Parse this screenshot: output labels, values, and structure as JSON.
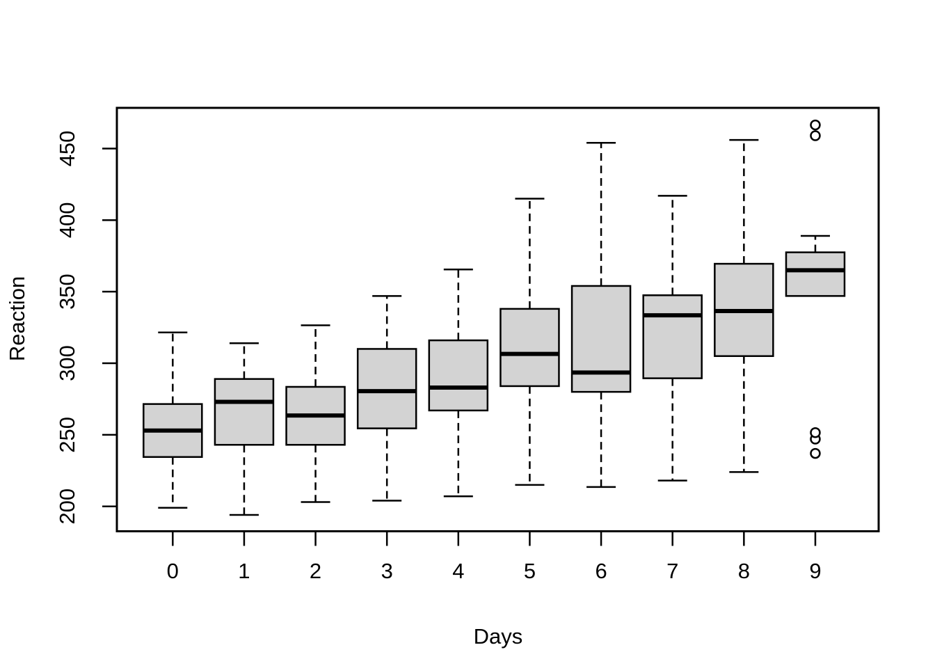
{
  "figure": {
    "background_color": "#ffffff",
    "line_color": "#000000",
    "box_fill_color": "#d3d3d3"
  },
  "chart_data": {
    "type": "boxplot",
    "title": "",
    "xlabel": "Days",
    "ylabel": "Reaction",
    "categories": [
      "0",
      "1",
      "2",
      "3",
      "4",
      "5",
      "6",
      "7",
      "8",
      "9"
    ],
    "y_ticks": [
      200,
      250,
      300,
      350,
      400,
      450
    ],
    "y_tick_labels": [
      "200",
      "250",
      "300",
      "350",
      "400",
      "450"
    ],
    "ylim": [
      190,
      472
    ],
    "grid": "off",
    "legend": "none",
    "orientation": "vertical",
    "series": [
      {
        "category": "0",
        "whisker_low": 199,
        "q1": 234.5,
        "median": 253,
        "q3": 271.5,
        "whisker_high": 321.5,
        "outliers": []
      },
      {
        "category": "1",
        "whisker_low": 194,
        "q1": 243,
        "median": 273,
        "q3": 289,
        "whisker_high": 314,
        "outliers": []
      },
      {
        "category": "2",
        "whisker_low": 203,
        "q1": 243,
        "median": 263.5,
        "q3": 283.5,
        "whisker_high": 326.5,
        "outliers": []
      },
      {
        "category": "3",
        "whisker_low": 204,
        "q1": 254.5,
        "median": 280.5,
        "q3": 310,
        "whisker_high": 347,
        "outliers": []
      },
      {
        "category": "4",
        "whisker_low": 207,
        "q1": 267,
        "median": 283,
        "q3": 316,
        "whisker_high": 365.5,
        "outliers": []
      },
      {
        "category": "5",
        "whisker_low": 215,
        "q1": 284,
        "median": 306.5,
        "q3": 338,
        "whisker_high": 415,
        "outliers": []
      },
      {
        "category": "6",
        "whisker_low": 213.5,
        "q1": 280,
        "median": 293.5,
        "q3": 354,
        "whisker_high": 454,
        "outliers": []
      },
      {
        "category": "7",
        "whisker_low": 218,
        "q1": 289.5,
        "median": 333.5,
        "q3": 347.5,
        "whisker_high": 417,
        "outliers": []
      },
      {
        "category": "8",
        "whisker_low": 224,
        "q1": 305,
        "median": 336.5,
        "q3": 369.5,
        "whisker_high": 456,
        "outliers": []
      },
      {
        "category": "9",
        "whisker_low": 347,
        "q1": 347,
        "median": 365,
        "q3": 377.5,
        "whisker_high": 389,
        "outliers": [
          237,
          247,
          251.5,
          459,
          466.5
        ]
      }
    ]
  }
}
